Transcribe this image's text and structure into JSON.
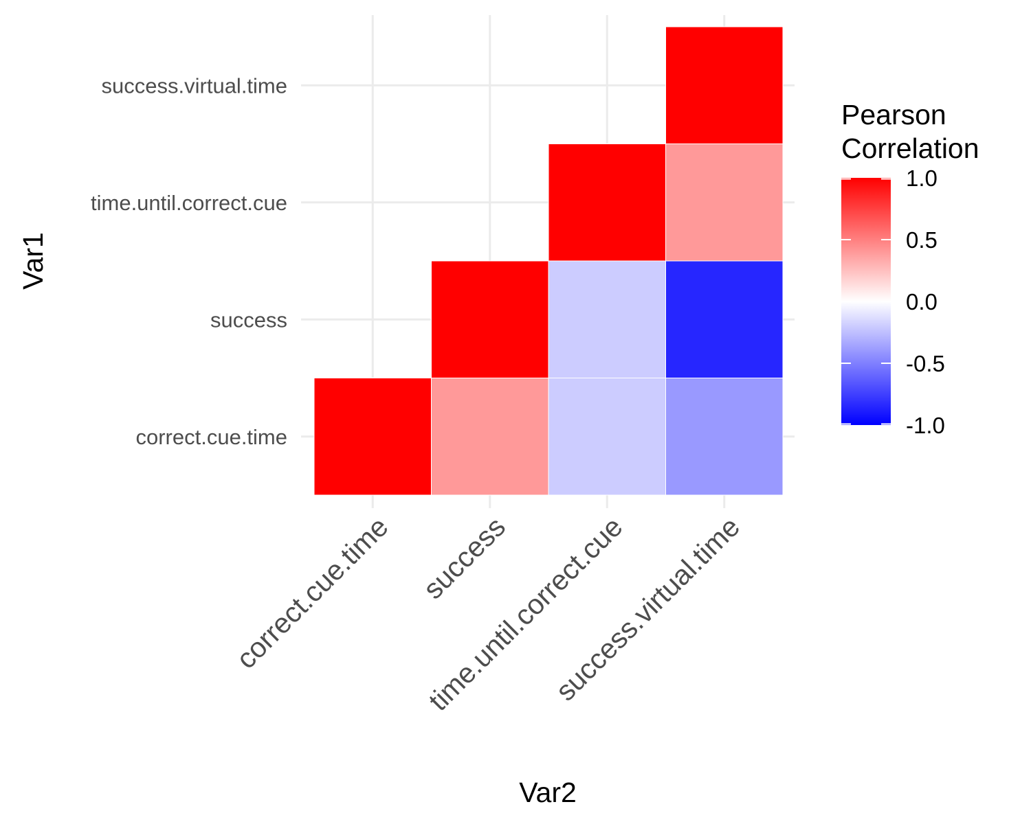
{
  "chart_data": {
    "type": "heatmap",
    "xlabel": "Var2",
    "ylabel": "Var1",
    "x_categories": [
      "correct.cue.time",
      "success",
      "time.until.correct.cue",
      "success.virtual.time"
    ],
    "y_categories": [
      "correct.cue.time",
      "success",
      "time.until.correct.cue",
      "success.virtual.time"
    ],
    "cells": [
      {
        "x": "correct.cue.time",
        "y": "correct.cue.time",
        "value": 1.0
      },
      {
        "x": "success",
        "y": "correct.cue.time",
        "value": 0.4
      },
      {
        "x": "time.until.correct.cue",
        "y": "correct.cue.time",
        "value": -0.2
      },
      {
        "x": "success.virtual.time",
        "y": "correct.cue.time",
        "value": -0.4
      },
      {
        "x": "success",
        "y": "success",
        "value": 1.0
      },
      {
        "x": "time.until.correct.cue",
        "y": "success",
        "value": -0.2
      },
      {
        "x": "success.virtual.time",
        "y": "success",
        "value": -0.85
      },
      {
        "x": "time.until.correct.cue",
        "y": "time.until.correct.cue",
        "value": 1.0
      },
      {
        "x": "success.virtual.time",
        "y": "time.until.correct.cue",
        "value": 0.4
      },
      {
        "x": "success.virtual.time",
        "y": "success.virtual.time",
        "value": 1.0
      }
    ],
    "color_scale": {
      "low": "#0000ff",
      "mid": "#ffffff",
      "high": "#ff0000",
      "limits": [
        -1,
        1
      ],
      "midpoint": 0
    },
    "legend": {
      "title_lines": [
        "Pearson",
        "Correlation"
      ],
      "breaks": [
        1.0,
        0.5,
        0.0,
        -0.5,
        -1.0
      ],
      "labels": [
        "1.0",
        "0.5",
        "0.0",
        "-0.5",
        "-1.0"
      ],
      "placement": "right"
    },
    "grid": true
  }
}
